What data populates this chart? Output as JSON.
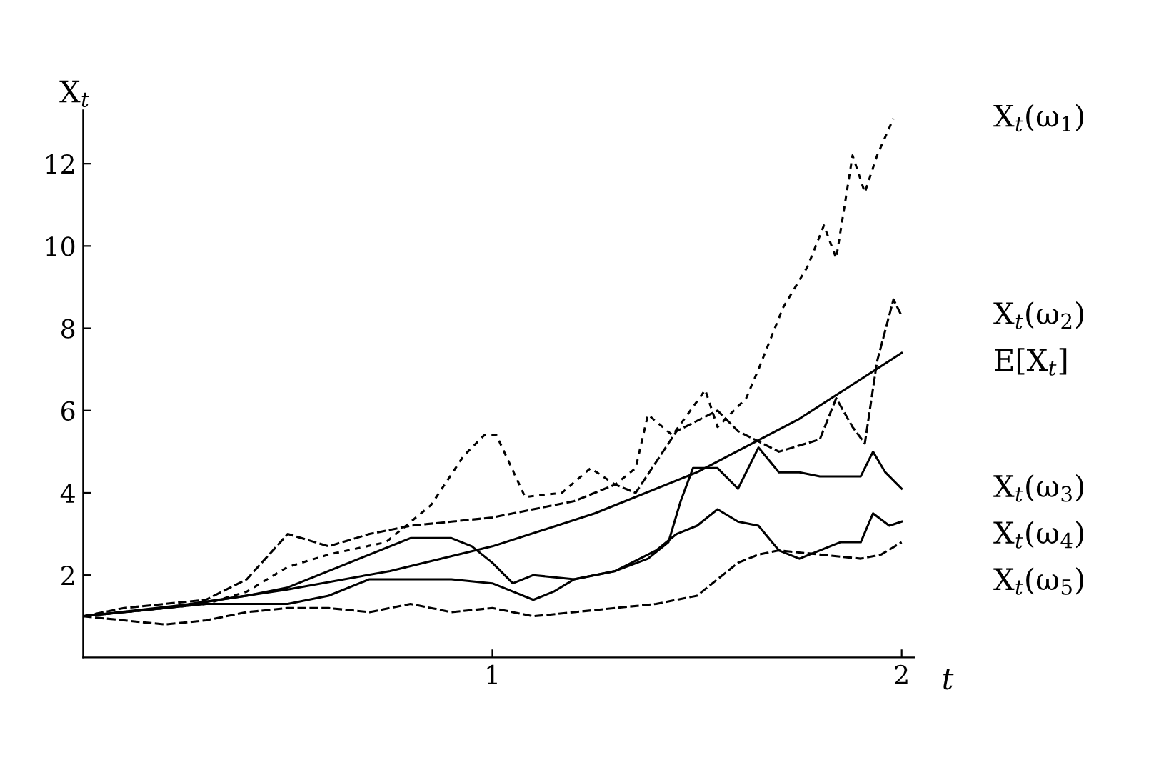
{
  "chart_data": {
    "type": "line",
    "xlabel": "t",
    "ylabel": "X$_{t}$",
    "xlim": [
      0,
      2.03
    ],
    "ylim": [
      0,
      13.3
    ],
    "xticks": [
      1,
      2
    ],
    "yticks": [
      2,
      4,
      6,
      8,
      10,
      12
    ],
    "grid": false,
    "marker": "none",
    "series": [
      {
        "name": "X$_{t}$(ω$_{1}$)",
        "color": "#000000",
        "line_style": "dotted",
        "x": [
          0,
          0.1,
          0.2,
          0.3,
          0.4,
          0.5,
          0.6,
          0.74,
          0.85,
          0.93,
          0.98,
          1.01,
          1.08,
          1.17,
          1.24,
          1.3,
          1.35,
          1.38,
          1.44,
          1.52,
          1.55,
          1.62,
          1.65,
          1.71,
          1.77,
          1.81,
          1.84,
          1.88,
          1.91,
          1.94,
          1.98
        ],
        "values": [
          1.0,
          1.1,
          1.2,
          1.3,
          1.6,
          2.2,
          2.5,
          2.8,
          3.7,
          4.9,
          5.4,
          5.4,
          3.9,
          4.0,
          4.6,
          4.2,
          4.6,
          5.9,
          5.4,
          6.5,
          5.6,
          6.3,
          7.0,
          8.5,
          9.5,
          10.5,
          9.7,
          12.2,
          11.3,
          12.2,
          13.1
        ]
      },
      {
        "name": "X$_{t}$(ω$_{2}$)",
        "color": "#000000",
        "line_style": "dashed",
        "x": [
          0,
          0.1,
          0.2,
          0.3,
          0.4,
          0.5,
          0.6,
          0.7,
          0.8,
          0.9,
          1.0,
          1.1,
          1.2,
          1.3,
          1.35,
          1.45,
          1.55,
          1.6,
          1.7,
          1.8,
          1.84,
          1.88,
          1.91,
          1.94,
          1.98,
          2.0
        ],
        "values": [
          1.0,
          1.2,
          1.3,
          1.4,
          1.9,
          3.0,
          2.7,
          3.0,
          3.2,
          3.3,
          3.4,
          3.6,
          3.8,
          4.2,
          4.0,
          5.5,
          6.0,
          5.5,
          5.0,
          5.3,
          6.3,
          5.6,
          5.2,
          7.2,
          8.7,
          8.3
        ]
      },
      {
        "name": "E[X$_{t}$]",
        "color": "#000000",
        "line_style": "solid",
        "x": [
          0,
          0.25,
          0.5,
          0.75,
          1.0,
          1.25,
          1.5,
          1.75,
          2.0
        ],
        "values": [
          1.0,
          1.28,
          1.65,
          2.1,
          2.7,
          3.5,
          4.5,
          5.8,
          7.4
        ]
      },
      {
        "name": "X$_{t}$(ω$_{3}$)",
        "color": "#000000",
        "line_style": "solid",
        "x": [
          0,
          0.2,
          0.4,
          0.5,
          0.6,
          0.7,
          0.8,
          0.9,
          0.95,
          1.0,
          1.05,
          1.1,
          1.2,
          1.3,
          1.38,
          1.43,
          1.46,
          1.49,
          1.55,
          1.6,
          1.65,
          1.7,
          1.75,
          1.8,
          1.85,
          1.9,
          1.93,
          1.96,
          2.0
        ],
        "values": [
          1.0,
          1.2,
          1.5,
          1.7,
          2.1,
          2.5,
          2.9,
          2.9,
          2.7,
          2.3,
          1.8,
          2.0,
          1.9,
          2.1,
          2.4,
          2.8,
          3.8,
          4.6,
          4.6,
          4.1,
          5.1,
          4.5,
          4.5,
          4.4,
          4.4,
          4.4,
          5.0,
          4.5,
          4.1
        ]
      },
      {
        "name": "X$_{t}$(ω$_{4}$)",
        "color": "#000000",
        "line_style": "solid",
        "x": [
          0,
          0.3,
          0.5,
          0.6,
          0.7,
          0.8,
          0.9,
          1.0,
          1.05,
          1.1,
          1.15,
          1.2,
          1.3,
          1.4,
          1.45,
          1.5,
          1.55,
          1.6,
          1.65,
          1.7,
          1.75,
          1.8,
          1.85,
          1.9,
          1.93,
          1.97,
          2.0
        ],
        "values": [
          1.0,
          1.3,
          1.3,
          1.5,
          1.9,
          1.9,
          1.9,
          1.8,
          1.6,
          1.4,
          1.6,
          1.9,
          2.1,
          2.6,
          3.0,
          3.2,
          3.6,
          3.3,
          3.2,
          2.6,
          2.4,
          2.6,
          2.8,
          2.8,
          3.5,
          3.2,
          3.3
        ]
      },
      {
        "name": "X$_{t}$(ω$_{5}$)",
        "color": "#000000",
        "line_style": "dashed",
        "x": [
          0,
          0.1,
          0.2,
          0.3,
          0.4,
          0.5,
          0.6,
          0.7,
          0.8,
          0.9,
          1.0,
          1.1,
          1.2,
          1.3,
          1.4,
          1.5,
          1.6,
          1.65,
          1.7,
          1.8,
          1.9,
          1.95,
          2.0
        ],
        "values": [
          1.0,
          0.9,
          0.8,
          0.9,
          1.1,
          1.2,
          1.2,
          1.1,
          1.3,
          1.1,
          1.2,
          1.0,
          1.1,
          1.2,
          1.3,
          1.5,
          2.3,
          2.5,
          2.6,
          2.5,
          2.4,
          2.5,
          2.8
        ]
      }
    ]
  }
}
